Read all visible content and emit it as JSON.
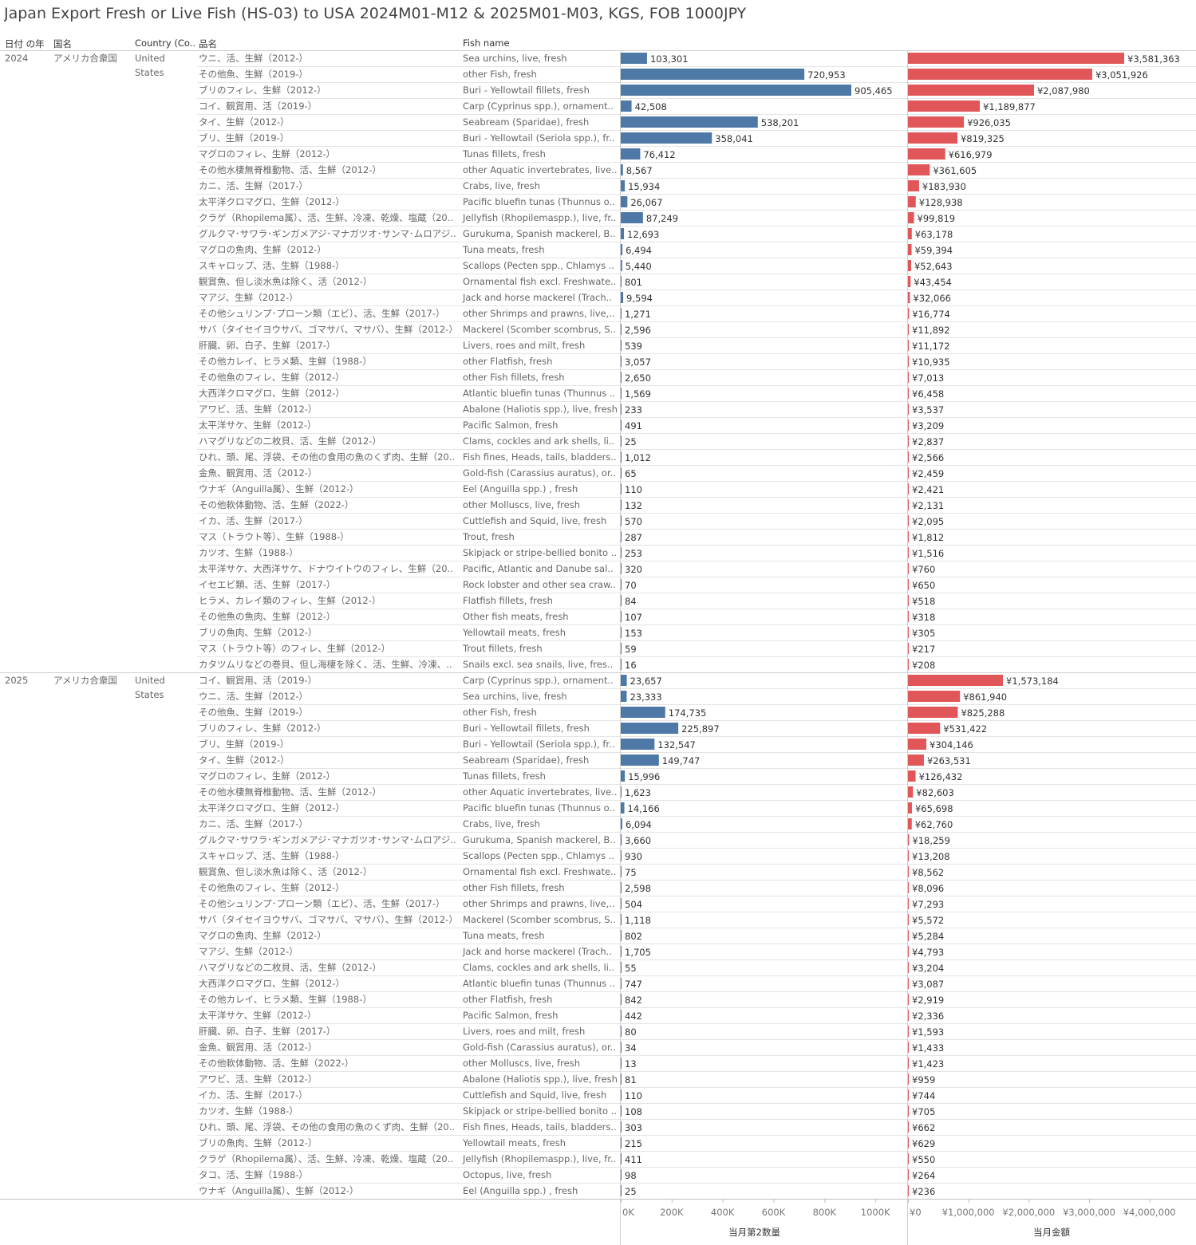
{
  "title": "Japan Export Fresh or Live Fish (HS-03) to USA 2024M01-M12 & 2025M01-M03, KGS, FOB 1000JPY",
  "headers": {
    "year": "日付 の年",
    "country_jp": "国名",
    "country_en": "Country (Co..",
    "item_jp": "品名",
    "item_en": "Fish name"
  },
  "colors": {
    "quantity_bar": "#4e79a7",
    "amount_bar": "#e15759"
  },
  "chart_data": {
    "type": "bar",
    "orientation": "horizontal",
    "measures": [
      {
        "key": "qty",
        "axis_title": "当月第2数量",
        "range": [
          0,
          1050000
        ],
        "ticks": [
          0,
          200000,
          400000,
          600000,
          800000,
          1000000
        ],
        "tick_labels": [
          "0K",
          "200K",
          "400K",
          "600K",
          "800K",
          "1000K"
        ]
      },
      {
        "key": "amt",
        "axis_title": "当月金額",
        "range": [
          0,
          4700000
        ],
        "ticks": [
          0,
          1000000,
          2000000,
          3000000,
          4000000
        ],
        "tick_labels": [
          "¥0",
          "¥1,000,000",
          "¥2,000,000",
          "¥3,000,000",
          "¥4,000,000"
        ]
      }
    ],
    "groups": [
      {
        "year": "2024",
        "country_jp": "アメリカ合衆国",
        "country_en": "United States",
        "rows": [
          {
            "jp": "ウニ、活、生鮮（2012-）",
            "en": "Sea urchins, live, fresh",
            "qty": 103301,
            "qty_label": "103,301",
            "amt": 3581363,
            "amt_label": "¥3,581,363"
          },
          {
            "jp": "その他魚、生鮮（2019-）",
            "en": "other Fish, fresh",
            "qty": 720953,
            "qty_label": "720,953",
            "amt": 3051926,
            "amt_label": "¥3,051,926"
          },
          {
            "jp": "ブリのフィレ、生鮮（2012-）",
            "en": "Buri - Yellowtail fillets, fresh",
            "qty": 905465,
            "qty_label": "905,465",
            "amt": 2087980,
            "amt_label": "¥2,087,980"
          },
          {
            "jp": "コイ、観賞用、活（2019-）",
            "en": "Carp (Cyprinus spp.), ornamental ..",
            "qty": 42508,
            "qty_label": "42,508",
            "amt": 1189877,
            "amt_label": "¥1,189,877"
          },
          {
            "jp": "タイ、生鮮（2012-）",
            "en": "Seabream (Sparidae), fresh",
            "qty": 538201,
            "qty_label": "538,201",
            "amt": 926035,
            "amt_label": "¥926,035"
          },
          {
            "jp": "ブリ、生鮮（2019-）",
            "en": "Buri - Yellowtail (Seriola spp.), fre..",
            "qty": 358041,
            "qty_label": "358,041",
            "amt": 819325,
            "amt_label": "¥819,325"
          },
          {
            "jp": "マグロのフィレ、生鮮（2012-）",
            "en": "Tunas fillets, fresh",
            "qty": 76412,
            "qty_label": "76,412",
            "amt": 616979,
            "amt_label": "¥616,979"
          },
          {
            "jp": "その他水棲無脊椎動物、活、生鮮（2012-）",
            "en": "other Aquatic invertebrates, live, ..",
            "qty": 8567,
            "qty_label": "8,567",
            "amt": 361605,
            "amt_label": "¥361,605"
          },
          {
            "jp": "カニ、活、生鮮（2017-）",
            "en": "Crabs, live, fresh",
            "qty": 15934,
            "qty_label": "15,934",
            "amt": 183930,
            "amt_label": "¥183,930"
          },
          {
            "jp": "太平洋クロマグロ、生鮮（2012-）",
            "en": "Pacific bluefin tunas (Thunnus ori..",
            "qty": 26067,
            "qty_label": "26,067",
            "amt": 128938,
            "amt_label": "¥128,938"
          },
          {
            "jp": "クラゲ（Rhopilema属）、活、生鮮、冷凍、乾燥、塩蔵（2012-..",
            "en": "Jellyfish (Rhopilemaspp.), live, fr..",
            "qty": 87249,
            "qty_label": "87,249",
            "amt": 99819,
            "amt_label": "¥99,819"
          },
          {
            "jp": "グルクマ･サワラ･ギンガメアジ･マナガツオ･サンマ･ムロアジ･カラフトシ..",
            "en": "Gurukuma, Spanish mackerel, Big..",
            "qty": 12693,
            "qty_label": "12,693",
            "amt": 63178,
            "amt_label": "¥63,178"
          },
          {
            "jp": "マグロの魚肉、生鮮（2012-）",
            "en": "Tuna meats, fresh",
            "qty": 6494,
            "qty_label": "6,494",
            "amt": 59394,
            "amt_label": "¥59,394"
          },
          {
            "jp": "スキャロップ、活、生鮮（1988-）",
            "en": "Scallops (Pecten spp., Chlamys sp..",
            "qty": 5440,
            "qty_label": "5,440",
            "amt": 52643,
            "amt_label": "¥52,643"
          },
          {
            "jp": "観賞魚、但し淡水魚は除く、活（2012-）",
            "en": "Ornamental fish excl. Freshwater ..",
            "qty": 801,
            "qty_label": "801",
            "amt": 43454,
            "amt_label": "¥43,454"
          },
          {
            "jp": "マアジ、生鮮（2012-）",
            "en": "Jack and horse mackerel (Trachur..",
            "qty": 9594,
            "qty_label": "9,594",
            "amt": 32066,
            "amt_label": "¥32,066"
          },
          {
            "jp": "その他シュリンプ･プローン類（エビ）、活、生鮮（2017-）",
            "en": "other Shrimps and prawns, live, f..",
            "qty": 1271,
            "qty_label": "1,271",
            "amt": 16774,
            "amt_label": "¥16,774"
          },
          {
            "jp": "サバ（タイセイヨウサバ、ゴマサバ、マサバ）、生鮮（2012-）",
            "en": "Mackerel (Scomber scombrus, Sc..",
            "qty": 2596,
            "qty_label": "2,596",
            "amt": 11892,
            "amt_label": "¥11,892"
          },
          {
            "jp": "肝臓、卵、白子、生鮮（2017-）",
            "en": "Livers, roes and milt, fresh",
            "qty": 539,
            "qty_label": "539",
            "amt": 11172,
            "amt_label": "¥11,172"
          },
          {
            "jp": "その他カレイ、ヒラメ類、生鮮（1988-）",
            "en": "other Flatfish, fresh",
            "qty": 3057,
            "qty_label": "3,057",
            "amt": 10935,
            "amt_label": "¥10,935"
          },
          {
            "jp": "その他魚のフィレ、生鮮（2012-）",
            "en": "other Fish fillets, fresh",
            "qty": 2650,
            "qty_label": "2,650",
            "amt": 7013,
            "amt_label": "¥7,013"
          },
          {
            "jp": "大西洋クロマグロ、生鮮（2012-）",
            "en": "Atlantic bluefin tunas (Thunnus t..",
            "qty": 1569,
            "qty_label": "1,569",
            "amt": 6458,
            "amt_label": "¥6,458"
          },
          {
            "jp": "アワビ、活、生鮮（2012-）",
            "en": "Abalone (Haliotis spp.), live, fresh",
            "qty": 233,
            "qty_label": "233",
            "amt": 3537,
            "amt_label": "¥3,537"
          },
          {
            "jp": "太平洋サケ、生鮮（2012-）",
            "en": "Pacific Salmon, fresh",
            "qty": 491,
            "qty_label": "491",
            "amt": 3209,
            "amt_label": "¥3,209"
          },
          {
            "jp": "ハマグリなどの二枚貝、活、生鮮（2012-）",
            "en": "Clams, cockles and ark shells, live..",
            "qty": 25,
            "qty_label": "25",
            "amt": 2837,
            "amt_label": "¥2,837"
          },
          {
            "jp": "ひれ、頭、尾、浮袋、その他の食用の魚のくず肉、生鮮（2017-）",
            "en": "Fish fines, Heads, tails, bladders ..",
            "qty": 1012,
            "qty_label": "1,012",
            "amt": 2566,
            "amt_label": "¥2,566"
          },
          {
            "jp": "金魚、観賞用、活（2012-）",
            "en": "Gold-fish (Carassius auratus), orn..",
            "qty": 65,
            "qty_label": "65",
            "amt": 2459,
            "amt_label": "¥2,459"
          },
          {
            "jp": "ウナギ（Anguilla属）、生鮮（2012-）",
            "en": "Eel (Anguilla spp.) , fresh",
            "qty": 110,
            "qty_label": "110",
            "amt": 2421,
            "amt_label": "¥2,421"
          },
          {
            "jp": "その他軟体動物、活、生鮮（2022-）",
            "en": "other Molluscs, live, fresh",
            "qty": 132,
            "qty_label": "132",
            "amt": 2131,
            "amt_label": "¥2,131"
          },
          {
            "jp": "イカ、活、生鮮（2017-）",
            "en": "Cuttlefish and Squid, live, fresh",
            "qty": 570,
            "qty_label": "570",
            "amt": 2095,
            "amt_label": "¥2,095"
          },
          {
            "jp": "マス（トラウト等）、生鮮（1988-）",
            "en": "Trout, fresh",
            "qty": 287,
            "qty_label": "287",
            "amt": 1812,
            "amt_label": "¥1,812"
          },
          {
            "jp": "カツオ、生鮮（1988-）",
            "en": "Skipjack or stripe-bellied bonito (..",
            "qty": 253,
            "qty_label": "253",
            "amt": 1516,
            "amt_label": "¥1,516"
          },
          {
            "jp": "太平洋サケ、大西洋サケ、ドナウイトウのフィレ、生鮮（2012-）",
            "en": "Pacific, Atlantic and Danube salm..",
            "qty": 320,
            "qty_label": "320",
            "amt": 760,
            "amt_label": "¥760"
          },
          {
            "jp": "イセエビ類、活、生鮮（2017-）",
            "en": "Rock lobster and other sea crawfi..",
            "qty": 70,
            "qty_label": "70",
            "amt": 650,
            "amt_label": "¥650"
          },
          {
            "jp": "ヒラメ、カレイ類のフィレ、生鮮（2012-）",
            "en": "Flatfish fillets, fresh",
            "qty": 84,
            "qty_label": "84",
            "amt": 518,
            "amt_label": "¥518"
          },
          {
            "jp": "その他魚の魚肉、生鮮（2012-）",
            "en": "Other fish meats, fresh",
            "qty": 107,
            "qty_label": "107",
            "amt": 318,
            "amt_label": "¥318"
          },
          {
            "jp": "ブリの魚肉、生鮮（2012-）",
            "en": "Yellowtail meats, fresh",
            "qty": 153,
            "qty_label": "153",
            "amt": 305,
            "amt_label": "¥305"
          },
          {
            "jp": "マス（トラウト等）のフィレ、生鮮（2012-）",
            "en": "Trout fillets, fresh",
            "qty": 59,
            "qty_label": "59",
            "amt": 217,
            "amt_label": "¥217"
          },
          {
            "jp": "カタツムリなどの巻貝、但し海棲を除く、活、生鮮、冷凍、乾燥、塩..",
            "en": "Snails excl. sea snails, live, fresh, ..",
            "qty": 16,
            "qty_label": "16",
            "amt": 208,
            "amt_label": "¥208"
          }
        ]
      },
      {
        "year": "2025",
        "country_jp": "アメリカ合衆国",
        "country_en": "United States",
        "rows": [
          {
            "jp": "コイ、観賞用、活（2019-）",
            "en": "Carp (Cyprinus spp.), ornamental ..",
            "qty": 23657,
            "qty_label": "23,657",
            "amt": 1573184,
            "amt_label": "¥1,573,184"
          },
          {
            "jp": "ウニ、活、生鮮（2012-）",
            "en": "Sea urchins, live, fresh",
            "qty": 23333,
            "qty_label": "23,333",
            "amt": 861940,
            "amt_label": "¥861,940"
          },
          {
            "jp": "その他魚、生鮮（2019-）",
            "en": "other Fish, fresh",
            "qty": 174735,
            "qty_label": "174,735",
            "amt": 825288,
            "amt_label": "¥825,288"
          },
          {
            "jp": "ブリのフィレ、生鮮（2012-）",
            "en": "Buri - Yellowtail fillets, fresh",
            "qty": 225897,
            "qty_label": "225,897",
            "amt": 531422,
            "amt_label": "¥531,422"
          },
          {
            "jp": "ブリ、生鮮（2019-）",
            "en": "Buri - Yellowtail (Seriola spp.), fre..",
            "qty": 132547,
            "qty_label": "132,547",
            "amt": 304146,
            "amt_label": "¥304,146"
          },
          {
            "jp": "タイ、生鮮（2012-）",
            "en": "Seabream (Sparidae), fresh",
            "qty": 149747,
            "qty_label": "149,747",
            "amt": 263531,
            "amt_label": "¥263,531"
          },
          {
            "jp": "マグロのフィレ、生鮮（2012-）",
            "en": "Tunas fillets, fresh",
            "qty": 15996,
            "qty_label": "15,996",
            "amt": 126432,
            "amt_label": "¥126,432"
          },
          {
            "jp": "その他水棲無脊椎動物、活、生鮮（2012-）",
            "en": "other Aquatic invertebrates, live, ..",
            "qty": 1623,
            "qty_label": "1,623",
            "amt": 82603,
            "amt_label": "¥82,603"
          },
          {
            "jp": "太平洋クロマグロ、生鮮（2012-）",
            "en": "Pacific bluefin tunas (Thunnus ori..",
            "qty": 14166,
            "qty_label": "14,166",
            "amt": 65698,
            "amt_label": "¥65,698"
          },
          {
            "jp": "カニ、活、生鮮（2017-）",
            "en": "Crabs, live, fresh",
            "qty": 6094,
            "qty_label": "6,094",
            "amt": 62760,
            "amt_label": "¥62,760"
          },
          {
            "jp": "グルクマ･サワラ･ギンガメアジ･マナガツオ･サンマ･ムロアジ･カラフトシ..",
            "en": "Gurukuma, Spanish mackerel, Big..",
            "qty": 3660,
            "qty_label": "3,660",
            "amt": 18259,
            "amt_label": "¥18,259"
          },
          {
            "jp": "スキャロップ、活、生鮮（1988-）",
            "en": "Scallops (Pecten spp., Chlamys sp..",
            "qty": 930,
            "qty_label": "930",
            "amt": 13208,
            "amt_label": "¥13,208"
          },
          {
            "jp": "観賞魚、但し淡水魚は除く、活（2012-）",
            "en": "Ornamental fish excl. Freshwater ..",
            "qty": 75,
            "qty_label": "75",
            "amt": 8562,
            "amt_label": "¥8,562"
          },
          {
            "jp": "その他魚のフィレ、生鮮（2012-）",
            "en": "other Fish fillets, fresh",
            "qty": 2598,
            "qty_label": "2,598",
            "amt": 8096,
            "amt_label": "¥8,096"
          },
          {
            "jp": "その他シュリンプ･プローン類（エビ）、活、生鮮（2017-）",
            "en": "other Shrimps and prawns, live, f..",
            "qty": 504,
            "qty_label": "504",
            "amt": 7293,
            "amt_label": "¥7,293"
          },
          {
            "jp": "サバ（タイセイヨウサバ、ゴマサバ、マサバ）、生鮮（2012-）",
            "en": "Mackerel (Scomber scombrus, Sc..",
            "qty": 1118,
            "qty_label": "1,118",
            "amt": 5572,
            "amt_label": "¥5,572"
          },
          {
            "jp": "マグロの魚肉、生鮮（2012-）",
            "en": "Tuna meats, fresh",
            "qty": 802,
            "qty_label": "802",
            "amt": 5284,
            "amt_label": "¥5,284"
          },
          {
            "jp": "マアジ、生鮮（2012-）",
            "en": "Jack and horse mackerel (Trachur..",
            "qty": 1705,
            "qty_label": "1,705",
            "amt": 4793,
            "amt_label": "¥4,793"
          },
          {
            "jp": "ハマグリなどの二枚貝、活、生鮮（2012-）",
            "en": "Clams, cockles and ark shells, live..",
            "qty": 55,
            "qty_label": "55",
            "amt": 3204,
            "amt_label": "¥3,204"
          },
          {
            "jp": "大西洋クロマグロ、生鮮（2012-）",
            "en": "Atlantic bluefin tunas (Thunnus t..",
            "qty": 747,
            "qty_label": "747",
            "amt": 3087,
            "amt_label": "¥3,087"
          },
          {
            "jp": "その他カレイ、ヒラメ類、生鮮（1988-）",
            "en": "other Flatfish, fresh",
            "qty": 842,
            "qty_label": "842",
            "amt": 2919,
            "amt_label": "¥2,919"
          },
          {
            "jp": "太平洋サケ、生鮮（2012-）",
            "en": "Pacific Salmon, fresh",
            "qty": 442,
            "qty_label": "442",
            "amt": 2336,
            "amt_label": "¥2,336"
          },
          {
            "jp": "肝臓、卵、白子、生鮮（2017-）",
            "en": "Livers, roes and milt, fresh",
            "qty": 80,
            "qty_label": "80",
            "amt": 1593,
            "amt_label": "¥1,593"
          },
          {
            "jp": "金魚、観賞用、活（2012-）",
            "en": "Gold-fish (Carassius auratus), orn..",
            "qty": 34,
            "qty_label": "34",
            "amt": 1433,
            "amt_label": "¥1,433"
          },
          {
            "jp": "その他軟体動物、活、生鮮（2022-）",
            "en": "other Molluscs, live, fresh",
            "qty": 13,
            "qty_label": "13",
            "amt": 1423,
            "amt_label": "¥1,423"
          },
          {
            "jp": "アワビ、活、生鮮（2012-）",
            "en": "Abalone (Haliotis spp.), live, fresh",
            "qty": 81,
            "qty_label": "81",
            "amt": 959,
            "amt_label": "¥959"
          },
          {
            "jp": "イカ、活、生鮮（2017-）",
            "en": "Cuttlefish and Squid, live, fresh",
            "qty": 110,
            "qty_label": "110",
            "amt": 744,
            "amt_label": "¥744"
          },
          {
            "jp": "カツオ、生鮮（1988-）",
            "en": "Skipjack or stripe-bellied bonito (..",
            "qty": 108,
            "qty_label": "108",
            "amt": 705,
            "amt_label": "¥705"
          },
          {
            "jp": "ひれ、頭、尾、浮袋、その他の食用の魚のくず肉、生鮮（2017-）",
            "en": "Fish fines, Heads, tails, bladders ..",
            "qty": 303,
            "qty_label": "303",
            "amt": 662,
            "amt_label": "¥662"
          },
          {
            "jp": "ブリの魚肉、生鮮（2012-）",
            "en": "Yellowtail meats, fresh",
            "qty": 215,
            "qty_label": "215",
            "amt": 629,
            "amt_label": "¥629"
          },
          {
            "jp": "クラゲ（Rhopilema属）、活、生鮮、冷凍、乾燥、塩蔵（2012-..",
            "en": "Jellyfish (Rhopilemaspp.), live, fr..",
            "qty": 411,
            "qty_label": "411",
            "amt": 550,
            "amt_label": "¥550"
          },
          {
            "jp": "タコ、活、生鮮（1988-）",
            "en": "Octopus, live, fresh",
            "qty": 98,
            "qty_label": "98",
            "amt": 264,
            "amt_label": "¥264"
          },
          {
            "jp": "ウナギ（Anguilla属）、生鮮（2012-）",
            "en": "Eel (Anguilla spp.) , fresh",
            "qty": 25,
            "qty_label": "25",
            "amt": 236,
            "amt_label": "¥236"
          }
        ]
      }
    ]
  }
}
